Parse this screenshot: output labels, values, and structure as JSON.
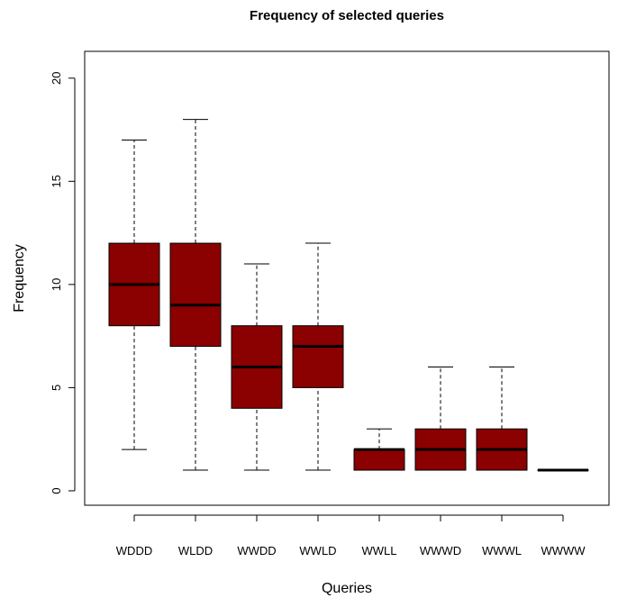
{
  "chart_data": {
    "type": "boxplot",
    "title": "Frequency of selected queries",
    "xlabel": "Queries",
    "ylabel": "Frequency",
    "ylim": [
      -0.7,
      21.3
    ],
    "yticks": [
      0,
      5,
      10,
      15,
      20
    ],
    "box_color": "#8b0000",
    "categories": [
      "WDDD",
      "WLDD",
      "WWDD",
      "WWLD",
      "WWLL",
      "WWWD",
      "WWWL",
      "WWWW"
    ],
    "boxes": [
      {
        "category": "WDDD",
        "min": 2,
        "q1": 8,
        "median": 10,
        "q3": 12,
        "max": 17
      },
      {
        "category": "WLDD",
        "min": 1,
        "q1": 7,
        "median": 9,
        "q3": 12,
        "max": 18
      },
      {
        "category": "WWDD",
        "min": 1,
        "q1": 4,
        "median": 6,
        "q3": 8,
        "max": 11
      },
      {
        "category": "WWLD",
        "min": 1,
        "q1": 5,
        "median": 7,
        "q3": 8,
        "max": 12
      },
      {
        "category": "WWLL",
        "min": 1,
        "q1": 1,
        "median": 2,
        "q3": 2,
        "max": 3
      },
      {
        "category": "WWWD",
        "min": 1,
        "q1": 1,
        "median": 2,
        "q3": 3,
        "max": 6
      },
      {
        "category": "WWWL",
        "min": 1,
        "q1": 1,
        "median": 2,
        "q3": 3,
        "max": 6
      },
      {
        "category": "WWWW",
        "min": 1,
        "q1": 1,
        "median": 1,
        "q3": 1,
        "max": 1
      }
    ]
  }
}
